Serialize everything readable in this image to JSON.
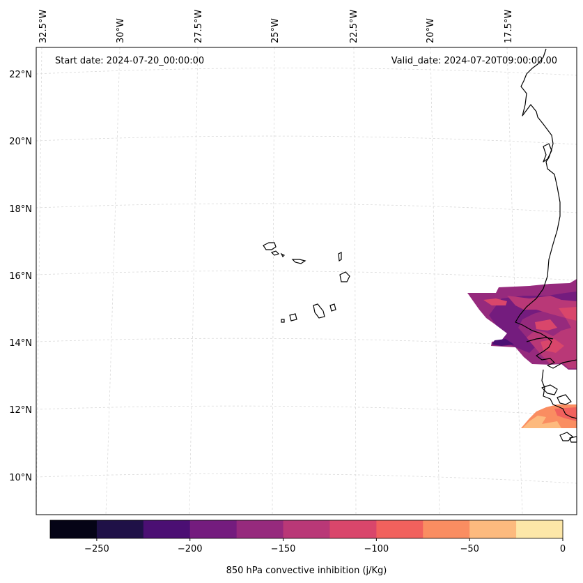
{
  "header": {
    "start_date": "Start date: 2024-07-20_00:00:00",
    "valid_date": "Valid_date: 2024-07-20T09:00:00.00"
  },
  "longitude_labels": [
    "32.5°W",
    "30°W",
    "27.5°W",
    "25°W",
    "22.5°W",
    "20°W",
    "17.5°W"
  ],
  "latitude_labels": [
    "22°N",
    "20°N",
    "18°N",
    "16°N",
    "14°N",
    "12°N",
    "10°N"
  ],
  "colorbar": {
    "label": "850 hPa convective inhibition (j/Kg)",
    "tick_labels": [
      "−250",
      "−200",
      "−150",
      "−100",
      "−50",
      "0"
    ],
    "colors": [
      "#050416",
      "#1f1147",
      "#4b0f73",
      "#741c7e",
      "#962a7d",
      "#b93877",
      "#d9466b",
      "#f1615d",
      "#fa8d61",
      "#fdba7e",
      "#fde7a8"
    ],
    "bounds": [
      -275,
      -250,
      -225,
      -200,
      -175,
      -150,
      -125,
      -100,
      -75,
      -50,
      -25,
      0
    ]
  },
  "colors": {
    "coastline": "#000000",
    "gridline": "#d0d0d0",
    "frame": "#000000"
  }
}
